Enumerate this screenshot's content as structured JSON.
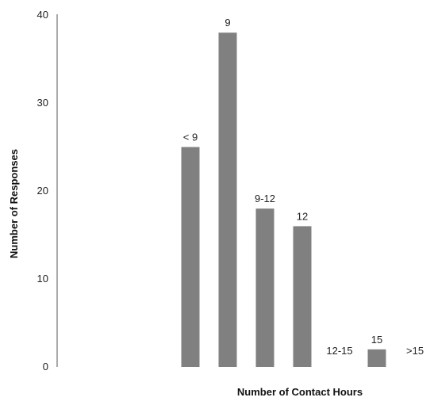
{
  "chart_data": {
    "type": "bar",
    "title": "",
    "xlabel": "Number of Contact Hours",
    "ylabel": "Number of Responses",
    "ylim": [
      0,
      40
    ],
    "yticks": [
      0,
      10,
      20,
      30,
      40
    ],
    "grid": false,
    "legend": "none",
    "bar_color": "#808080",
    "categories": [
      "< 9",
      "9",
      "9-12",
      "12",
      "12-15",
      "15",
      ">15"
    ],
    "values": [
      25,
      38,
      18,
      16,
      0,
      2,
      0
    ]
  }
}
